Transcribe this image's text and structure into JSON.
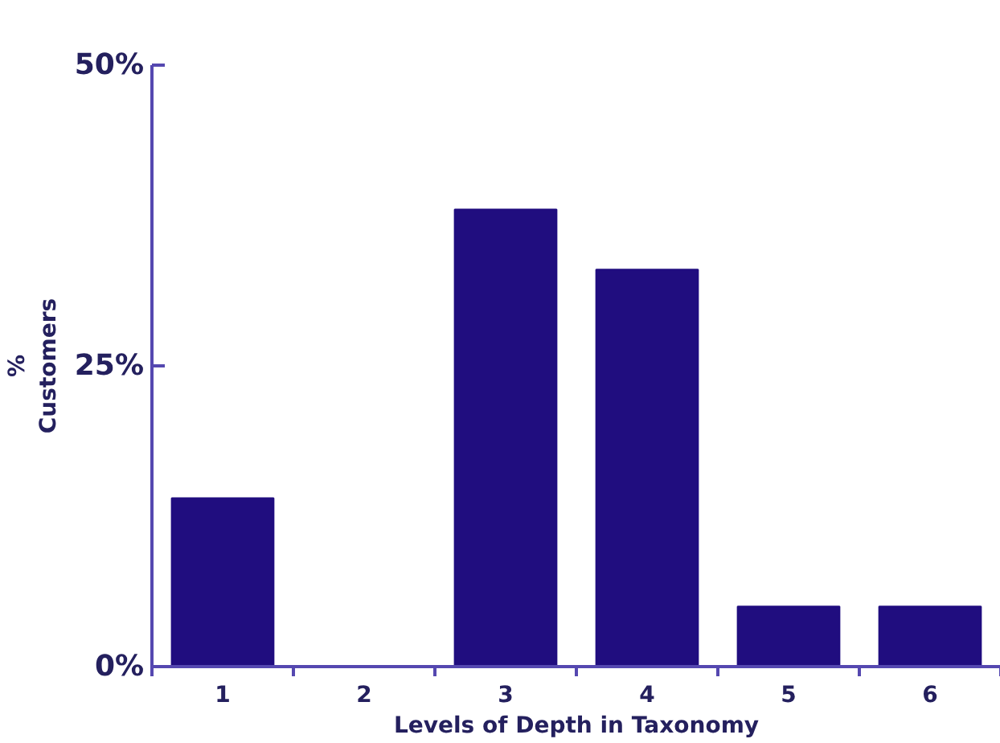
{
  "chart_data": {
    "type": "bar",
    "xlabel": "Levels of Depth in Taxonomy",
    "ylabel": "%\nCustomers",
    "categories": [
      "1",
      "2",
      "3",
      "4",
      "5",
      "6"
    ],
    "values": [
      14,
      0,
      38,
      33,
      5,
      5
    ],
    "color": "#200d7f",
    "ylim": [
      0,
      50
    ],
    "yticks": [
      {
        "value": 0,
        "label": "0%"
      },
      {
        "value": 25,
        "label": "25%"
      },
      {
        "value": 50,
        "label": "50%"
      }
    ],
    "grid": false
  }
}
